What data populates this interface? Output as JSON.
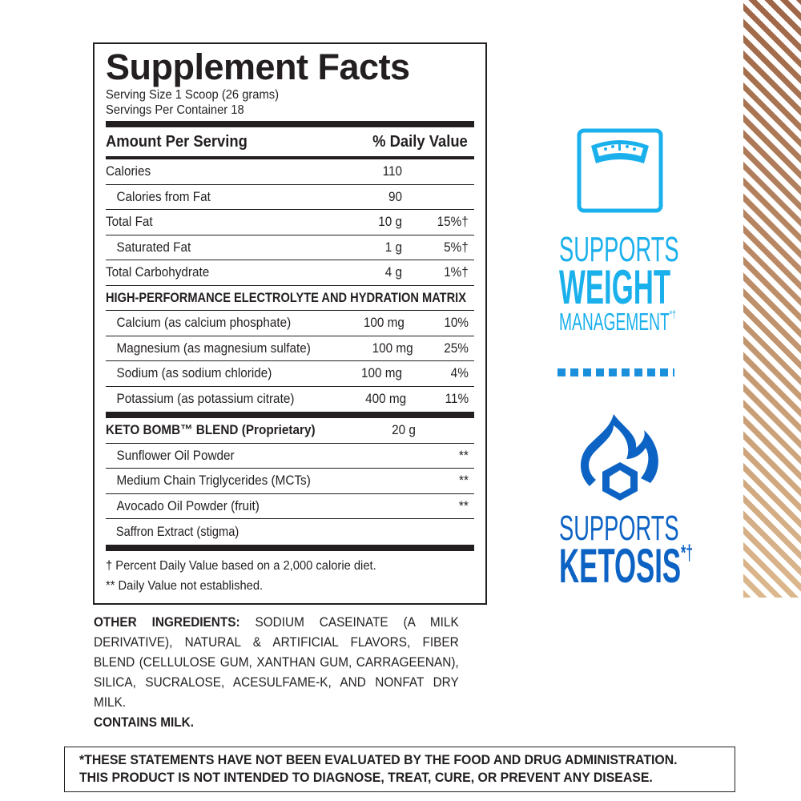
{
  "facts": {
    "title": "Supplement Facts",
    "serving_size": "Serving Size 1 Scoop (26 grams)",
    "servings_per_container": "Servings Per Container 18",
    "amount_header": "Amount Per Serving",
    "dv_header": "% Daily Value",
    "rows": [
      {
        "label": "Calories",
        "amount": "110",
        "dv": "",
        "style": ""
      },
      {
        "label": "Calories from Fat",
        "amount": "90",
        "dv": "",
        "style": "ind"
      },
      {
        "label": "Total Fat",
        "amount": "10 g",
        "dv": "15%†",
        "style": ""
      },
      {
        "label": "Saturated Fat",
        "amount": "1 g",
        "dv": "5%†",
        "style": "ind"
      },
      {
        "label": "Total Carbohydrate",
        "amount": "4 g",
        "dv": "1%†",
        "style": ""
      },
      {
        "label": "HIGH-PERFORMANCE ELECTROLYTE AND HYDRATION MATRIX",
        "amount": "",
        "dv": "",
        "style": "b"
      },
      {
        "label": "Calcium (as calcium phosphate)",
        "amount": "100 mg",
        "dv": "10%",
        "style": "ind"
      },
      {
        "label": "Magnesium (as magnesium sulfate)",
        "amount": "100 mg",
        "dv": "25%",
        "style": "ind"
      },
      {
        "label": "Sodium (as sodium chloride)",
        "amount": "100 mg",
        "dv": "4%",
        "style": "ind"
      },
      {
        "label": "Potassium (as potassium citrate)",
        "amount": "400 mg",
        "dv": "11%",
        "style": "ind nob"
      }
    ],
    "blend_rows": [
      {
        "label": "KETO BOMB™ BLEND (Proprietary)",
        "amount": "20 g",
        "dv": "",
        "style": "b"
      },
      {
        "label": "Sunflower Oil Powder",
        "amount": "",
        "dv": "**",
        "style": "ind"
      },
      {
        "label": "Medium Chain Triglycerides (MCTs)",
        "amount": "",
        "dv": "**",
        "style": "ind"
      },
      {
        "label": "Avocado Oil Powder (fruit)",
        "amount": "",
        "dv": "**",
        "style": "ind"
      },
      {
        "label": "Saffron Extract (stigma)",
        "amount": "",
        "dv": "**",
        "style": "ind nob"
      }
    ],
    "footnote1": "† Percent Daily Value based on a 2,000 calorie diet.",
    "footnote2": "** Daily Value not established."
  },
  "other": {
    "label": "OTHER INGREDIENTS:",
    "text": " SODIUM CASEINATE (A MILK DERIVATIVE), NATURAL & ARTIFICIAL FLAVORS, FIBER BLEND (CELLULOSE GUM, XANTHAN GUM, CARRAGEENAN), SILICA, SUCRALOSE, ACESULFAME-K, AND NONFAT DRY MILK.",
    "contains": "CONTAINS MILK."
  },
  "disclaimer": {
    "line1": "*THESE STATEMENTS HAVE NOT BEEN EVALUATED BY THE FOOD AND DRUG ADMINISTRATION.",
    "line2": "THIS PRODUCT IS NOT INTENDED TO DIAGNOSE, TREAT, CURE, OR PREVENT ANY DISEASE."
  },
  "claims": {
    "weight": {
      "icon": "scale-icon",
      "line1": "SUPPORTS",
      "line2": "WEIGHT",
      "line3": "MANAGEMENT",
      "mark": "*†",
      "color": "#1ab0ec"
    },
    "ketosis": {
      "icon": "flame-hexagon-icon",
      "line1": "SUPPORTS",
      "line2": "KETOSIS",
      "mark": "*†",
      "color": "#0d63c4"
    }
  },
  "colors": {
    "stripe_top": "#9e6646",
    "stripe_bottom": "#dcb88d"
  }
}
